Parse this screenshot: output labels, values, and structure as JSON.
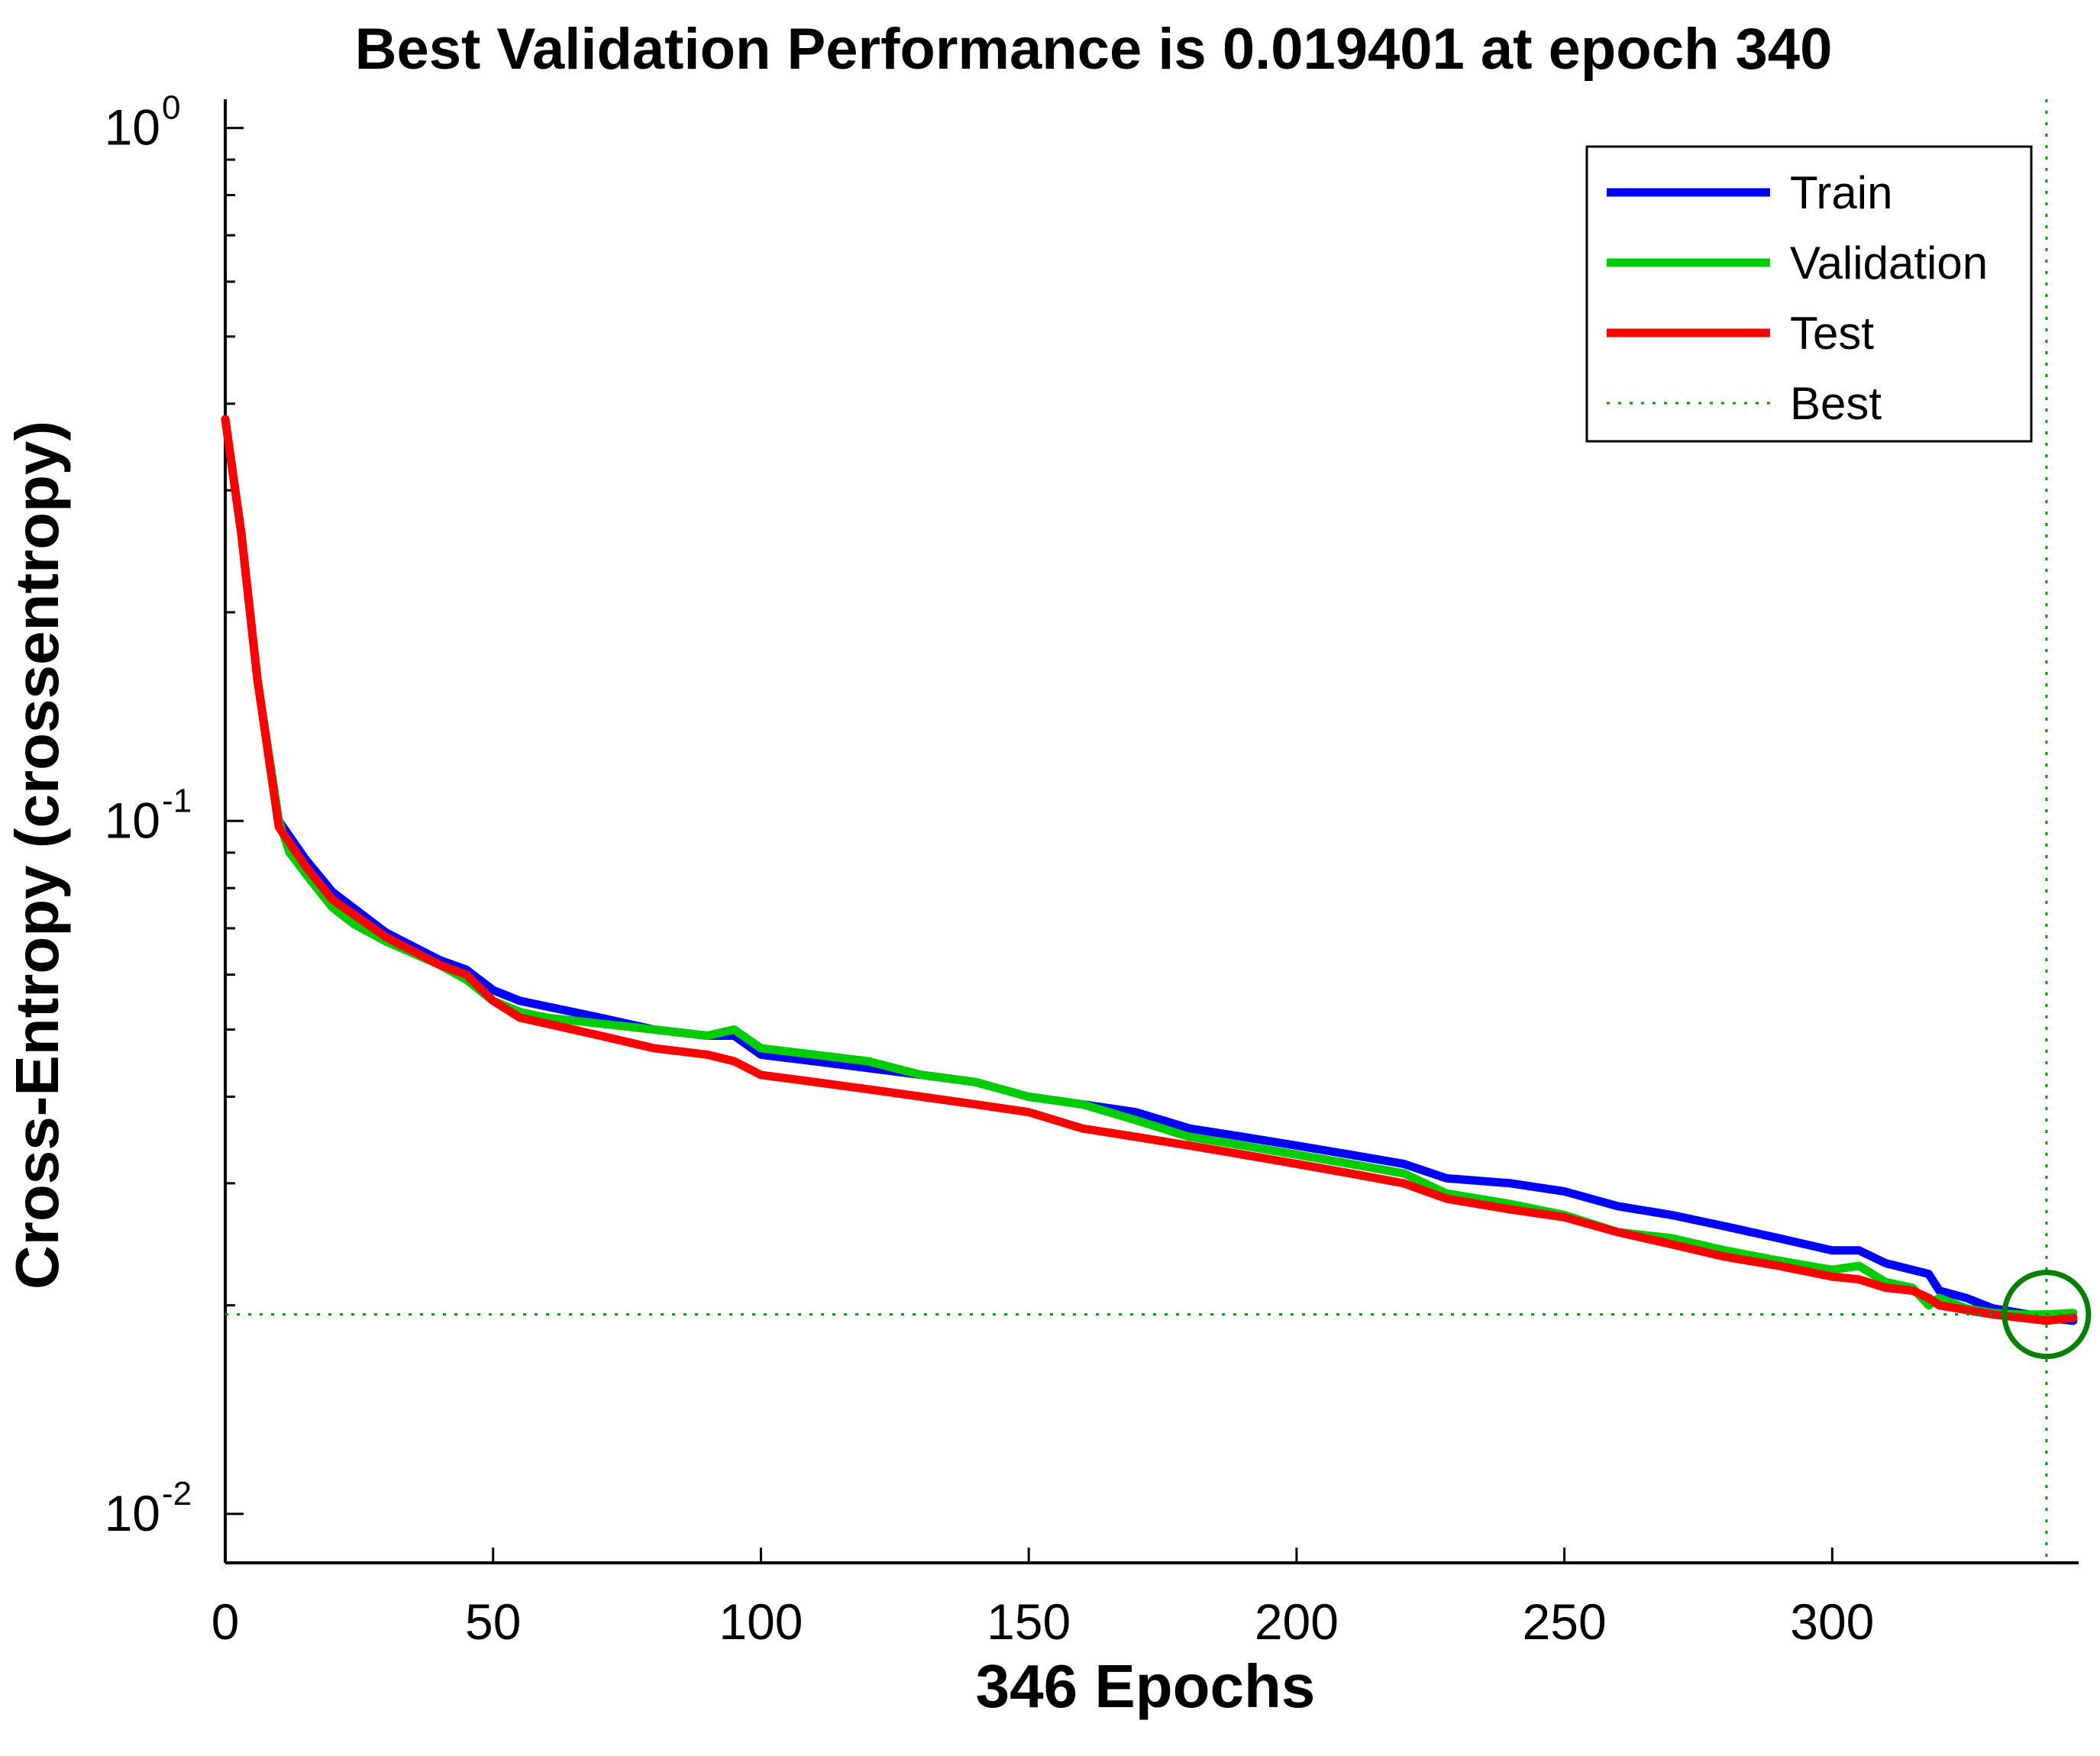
{
  "chart_data": {
    "type": "line",
    "title": "Best Validation Performance is 0.019401 at epoch 340",
    "xlabel": "346 Epochs",
    "ylabel": "Cross-Entropy  (crossentropy)",
    "xscale": "linear",
    "yscale": "log",
    "xlim": [
      0,
      346
    ],
    "ylim": [
      0.0085,
      1.1
    ],
    "xticks": [
      0,
      50,
      100,
      150,
      200,
      250,
      300
    ],
    "yticks": [
      {
        "value": 1,
        "base": "10",
        "exp": "0"
      },
      {
        "value": 0.1,
        "base": "10",
        "exp": "-1"
      },
      {
        "value": 0.01,
        "base": "10",
        "exp": "-2"
      }
    ],
    "grid": false,
    "legend_position": "top-right",
    "series": [
      {
        "name": "Train",
        "color": "#0000ff",
        "points": [
          [
            0,
            0.38
          ],
          [
            3,
            0.26
          ],
          [
            6,
            0.16
          ],
          [
            10,
            0.1
          ],
          [
            15,
            0.088
          ],
          [
            20,
            0.079
          ],
          [
            30,
            0.069
          ],
          [
            40,
            0.063
          ],
          [
            45,
            0.061
          ],
          [
            50,
            0.057
          ],
          [
            55,
            0.055
          ],
          [
            60,
            0.054
          ],
          [
            70,
            0.052
          ],
          [
            80,
            0.05
          ],
          [
            90,
            0.049
          ],
          [
            95,
            0.049
          ],
          [
            100,
            0.046
          ],
          [
            110,
            0.045
          ],
          [
            120,
            0.044
          ],
          [
            130,
            0.043
          ],
          [
            140,
            0.042
          ],
          [
            150,
            0.04
          ],
          [
            160,
            0.039
          ],
          [
            170,
            0.038
          ],
          [
            180,
            0.036
          ],
          [
            190,
            0.035
          ],
          [
            200,
            0.034
          ],
          [
            210,
            0.033
          ],
          [
            220,
            0.032
          ],
          [
            228,
            0.0305
          ],
          [
            240,
            0.03
          ],
          [
            250,
            0.0292
          ],
          [
            260,
            0.0278
          ],
          [
            270,
            0.027
          ],
          [
            280,
            0.026
          ],
          [
            290,
            0.025
          ],
          [
            300,
            0.024
          ],
          [
            305,
            0.024
          ],
          [
            310,
            0.023
          ],
          [
            315,
            0.0225
          ],
          [
            318,
            0.0222
          ],
          [
            320,
            0.021
          ],
          [
            325,
            0.0205
          ],
          [
            330,
            0.0198
          ],
          [
            335,
            0.0195
          ],
          [
            340,
            0.0192
          ],
          [
            345,
            0.019
          ]
        ]
      },
      {
        "name": "Validation",
        "color": "#00cc00",
        "points": [
          [
            0,
            0.38
          ],
          [
            3,
            0.26
          ],
          [
            6,
            0.16
          ],
          [
            10,
            0.1
          ],
          [
            12,
            0.09
          ],
          [
            16,
            0.082
          ],
          [
            20,
            0.075
          ],
          [
            24,
            0.071
          ],
          [
            30,
            0.067
          ],
          [
            40,
            0.062
          ],
          [
            45,
            0.059
          ],
          [
            50,
            0.055
          ],
          [
            55,
            0.053
          ],
          [
            60,
            0.052
          ],
          [
            70,
            0.051
          ],
          [
            80,
            0.05
          ],
          [
            90,
            0.049
          ],
          [
            95,
            0.05
          ],
          [
            100,
            0.047
          ],
          [
            110,
            0.046
          ],
          [
            120,
            0.045
          ],
          [
            130,
            0.043
          ],
          [
            140,
            0.042
          ],
          [
            150,
            0.04
          ],
          [
            160,
            0.039
          ],
          [
            170,
            0.037
          ],
          [
            180,
            0.035
          ],
          [
            190,
            0.034
          ],
          [
            200,
            0.033
          ],
          [
            210,
            0.032
          ],
          [
            220,
            0.031
          ],
          [
            228,
            0.029
          ],
          [
            240,
            0.028
          ],
          [
            250,
            0.027
          ],
          [
            260,
            0.0255
          ],
          [
            270,
            0.025
          ],
          [
            280,
            0.024
          ],
          [
            290,
            0.0232
          ],
          [
            300,
            0.0225
          ],
          [
            305,
            0.0228
          ],
          [
            310,
            0.0216
          ],
          [
            315,
            0.0212
          ],
          [
            318,
            0.02
          ],
          [
            320,
            0.0205
          ],
          [
            325,
            0.0198
          ],
          [
            330,
            0.0195
          ],
          [
            335,
            0.0194
          ],
          [
            340,
            0.019401
          ],
          [
            345,
            0.0195
          ]
        ]
      },
      {
        "name": "Test",
        "color": "#ff0000",
        "points": [
          [
            0,
            0.38
          ],
          [
            3,
            0.26
          ],
          [
            6,
            0.16
          ],
          [
            10,
            0.098
          ],
          [
            15,
            0.086
          ],
          [
            20,
            0.077
          ],
          [
            30,
            0.068
          ],
          [
            40,
            0.062
          ],
          [
            45,
            0.06
          ],
          [
            50,
            0.055
          ],
          [
            55,
            0.052
          ],
          [
            60,
            0.051
          ],
          [
            70,
            0.049
          ],
          [
            80,
            0.047
          ],
          [
            90,
            0.046
          ],
          [
            95,
            0.045
          ],
          [
            100,
            0.043
          ],
          [
            110,
            0.042
          ],
          [
            120,
            0.041
          ],
          [
            130,
            0.04
          ],
          [
            140,
            0.039
          ],
          [
            150,
            0.038
          ],
          [
            160,
            0.036
          ],
          [
            170,
            0.035
          ],
          [
            180,
            0.034
          ],
          [
            190,
            0.033
          ],
          [
            200,
            0.032
          ],
          [
            210,
            0.031
          ],
          [
            220,
            0.03
          ],
          [
            228,
            0.0285
          ],
          [
            240,
            0.0275
          ],
          [
            250,
            0.0268
          ],
          [
            260,
            0.0255
          ],
          [
            270,
            0.0245
          ],
          [
            280,
            0.0235
          ],
          [
            290,
            0.0228
          ],
          [
            300,
            0.022
          ],
          [
            305,
            0.0218
          ],
          [
            310,
            0.0212
          ],
          [
            315,
            0.021
          ],
          [
            318,
            0.0205
          ],
          [
            320,
            0.02
          ],
          [
            325,
            0.0197
          ],
          [
            330,
            0.0194
          ],
          [
            335,
            0.0192
          ],
          [
            340,
            0.019
          ],
          [
            345,
            0.0192
          ]
        ]
      }
    ],
    "best": {
      "label": "Best",
      "epoch": 340,
      "value": 0.019401,
      "color": "#009900",
      "marker_color": "#007f00"
    }
  }
}
